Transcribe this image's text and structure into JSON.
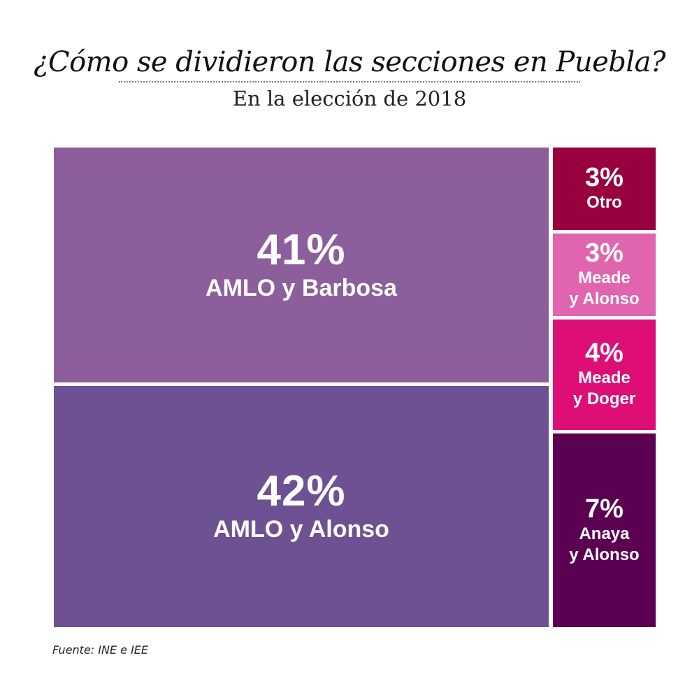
{
  "chart_data": {
    "type": "treemap",
    "title": "¿Cómo se dividieron las secciones en Puebla?",
    "subtitle": "En la elección de 2018",
    "source": "Fuente: INE e IEE",
    "unit": "%",
    "items": [
      {
        "label": "AMLO y Barbosa",
        "value": 41,
        "display": "41%",
        "color": "#8c5e9b",
        "group": "main"
      },
      {
        "label": "AMLO y Alonso",
        "value": 42,
        "display": "42%",
        "color": "#6e5192",
        "group": "main"
      },
      {
        "label": "Otro",
        "value": 3,
        "display": "3%",
        "color": "#98003f",
        "group": "side"
      },
      {
        "label": "Meade\ny Alonso",
        "value": 3,
        "display": "3%",
        "color": "#e064ae",
        "group": "side"
      },
      {
        "label": "Meade\ny Doger",
        "value": 4,
        "display": "4%",
        "color": "#de0e77",
        "group": "side"
      },
      {
        "label": "Anaya\ny Alonso",
        "value": 7,
        "display": "7%",
        "color": "#5c0052",
        "group": "side"
      }
    ]
  }
}
